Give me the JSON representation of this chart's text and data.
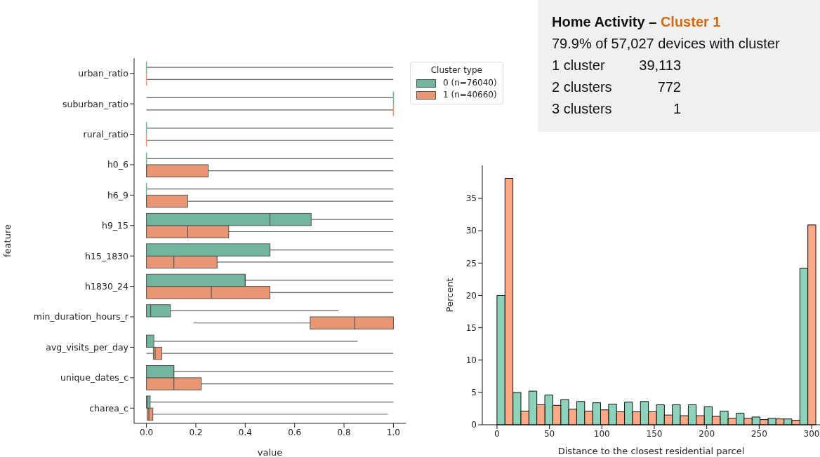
{
  "chart_data": [
    {
      "type": "box",
      "orientation": "horizontal",
      "xlabel": "value",
      "ylabel": "feature",
      "legend_title": "Cluster type",
      "legend": "right",
      "xlim": [
        -0.05,
        1.05
      ],
      "xticks": [
        {
          "value": 0,
          "label": "0.0"
        },
        0.2,
        0.4,
        0.6,
        0.8,
        {
          "value": 1,
          "label": "1.0"
        }
      ],
      "categories": [
        "urban_ratio",
        "suburban_ratio",
        "rural_ratio",
        "h0_6",
        "h6_9",
        "h9_15",
        "h15_1830",
        "h1830_24",
        "min_duration_hours_r",
        "avg_visits_per_day",
        "unique_dates_c",
        "charea_c"
      ],
      "series": [
        {
          "name": "0 (n=76040)",
          "color": "#72b6a0",
          "boxes": [
            {
              "low": 0,
              "q1": 0,
              "median": 0,
              "q3": 0,
              "high": 1
            },
            {
              "low": 0,
              "q1": 1,
              "median": 1,
              "q3": 1,
              "high": 1
            },
            {
              "low": 0,
              "q1": 0,
              "median": 0,
              "q3": 0,
              "high": 1
            },
            {
              "low": 0,
              "q1": 0,
              "median": 0,
              "q3": 0,
              "high": 1
            },
            {
              "low": 0,
              "q1": 0,
              "median": 0,
              "q3": 0,
              "high": 1
            },
            {
              "low": 0,
              "q1": 0,
              "median": 0.5,
              "q3": 0.667,
              "high": 1
            },
            {
              "low": 0,
              "q1": 0,
              "median": 0.5,
              "q3": 0.5,
              "high": 1
            },
            {
              "low": 0,
              "q1": 0,
              "median": 0.4,
              "q3": 0.4,
              "high": 1
            },
            {
              "low": 0,
              "q1": 0,
              "median": 0.017,
              "q3": 0.097,
              "high": 0.778
            },
            {
              "low": 0,
              "q1": 0,
              "median": 0,
              "q3": 0.03,
              "high": 0.855
            },
            {
              "low": 0,
              "q1": 0,
              "median": 0.111,
              "q3": 0.111,
              "high": 1
            },
            {
              "low": 0,
              "q1": 0,
              "median": 0.003,
              "q3": 0.015,
              "high": 1
            }
          ]
        },
        {
          "name": "1 (n=40660)",
          "color": "#e99675",
          "boxes": [
            {
              "low": 0,
              "q1": 0,
              "median": 0,
              "q3": 0,
              "high": 1
            },
            {
              "low": 0,
              "q1": 1,
              "median": 1,
              "q3": 1,
              "high": 1
            },
            {
              "low": 0,
              "q1": 0,
              "median": 0,
              "q3": 0,
              "high": 1
            },
            {
              "low": 0,
              "q1": 0,
              "median": 0,
              "q3": 0.25,
              "high": 1
            },
            {
              "low": 0,
              "q1": 0,
              "median": 0,
              "q3": 0.167,
              "high": 1
            },
            {
              "low": 0,
              "q1": 0,
              "median": 0.167,
              "q3": 0.333,
              "high": 1
            },
            {
              "low": 0,
              "q1": 0,
              "median": 0.111,
              "q3": 0.286,
              "high": 1
            },
            {
              "low": 0,
              "q1": 0,
              "median": 0.263,
              "q3": 0.5,
              "high": 1
            },
            {
              "low": 0.19,
              "q1": 0.663,
              "median": 0.843,
              "q3": 1,
              "high": 1
            },
            {
              "low": 0,
              "q1": 0.028,
              "median": 0.035,
              "q3": 0.062,
              "high": 1
            },
            {
              "low": 0,
              "q1": 0,
              "median": 0.111,
              "q3": 0.222,
              "high": 1
            },
            {
              "low": 0.003,
              "q1": 0.003,
              "median": 0.01,
              "q3": 0.026,
              "high": 0.977
            }
          ]
        }
      ]
    },
    {
      "type": "histogram",
      "xlabel": "Distance to the closest residential parcel",
      "ylabel": "Percent",
      "xlim": [
        -14,
        308
      ],
      "xticks": [
        0,
        50,
        100,
        150,
        200,
        250,
        300
      ],
      "ylim": [
        0,
        40.1
      ],
      "yticks": [
        0,
        5,
        10,
        15,
        20,
        25,
        30,
        35
      ],
      "bins": [
        0,
        15.2,
        30.4,
        45.6,
        60.8,
        76,
        91.2,
        106.4,
        121.6,
        136.8,
        152,
        167.2,
        182.4,
        197.6,
        212.8,
        228,
        243.2,
        258.4,
        273.6,
        288.8,
        304
      ],
      "series": [
        {
          "color": "#8dd3ba",
          "values": [
            20,
            5.0,
            5.2,
            4.6,
            3.9,
            3.6,
            3.4,
            3.2,
            3.5,
            3.6,
            3.1,
            3.1,
            3.1,
            2.8,
            2.1,
            1.8,
            1.2,
            1.0,
            0.9,
            24.2
          ]
        },
        {
          "color": "#fda987",
          "values": [
            38.1,
            2.1,
            3.1,
            3.0,
            2.4,
            2.1,
            2.3,
            2.0,
            2.0,
            2.0,
            1.5,
            1.4,
            1.4,
            1.3,
            1.0,
            1.0,
            0.8,
            0.9,
            0.7,
            30.9
          ]
        }
      ]
    },
    {
      "type": "other",
      "title": "Home Activity –",
      "subtitle": "Cluster 1",
      "annotations": [
        "79.9% of 57,027 devices with cluster",
        "1 cluster",
        "39,113",
        "2 clusters",
        "772",
        "3 clusters",
        "1"
      ]
    }
  ]
}
